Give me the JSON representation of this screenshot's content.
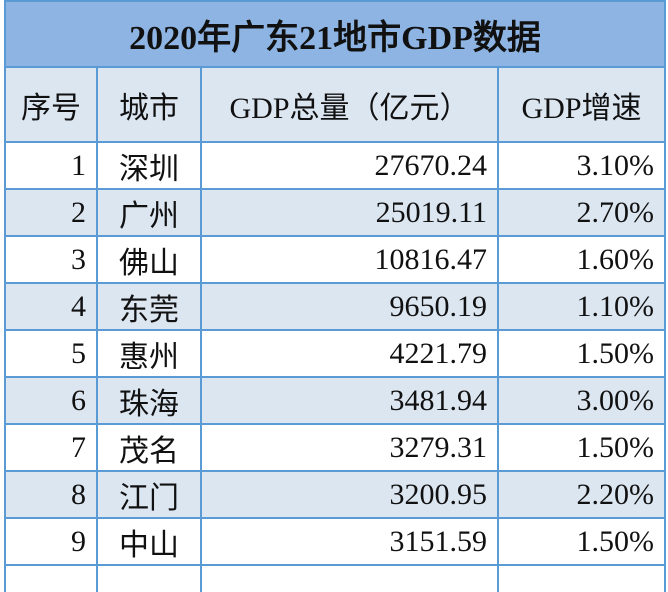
{
  "table": {
    "title": "2020年广东21地市GDP数据",
    "header": [
      "序号",
      "城市",
      "GDP总量（亿元）",
      "GDP增速"
    ],
    "rows": [
      [
        1,
        "深圳",
        27670.24,
        "3.10%"
      ],
      [
        2,
        "广州",
        25019.11,
        "2.70%"
      ],
      [
        3,
        "佛山",
        10816.47,
        "1.60%"
      ],
      [
        4,
        "东莞",
        9650.19,
        "1.10%"
      ],
      [
        5,
        "惠州",
        4221.79,
        "1.50%"
      ],
      [
        6,
        "珠海",
        3481.94,
        "3.00%"
      ],
      [
        7,
        "茂名",
        3279.31,
        "1.50%"
      ],
      [
        8,
        "江门",
        3200.95,
        "2.20%"
      ],
      [
        9,
        "中山",
        3151.59,
        "1.50%"
      ]
    ]
  }
}
